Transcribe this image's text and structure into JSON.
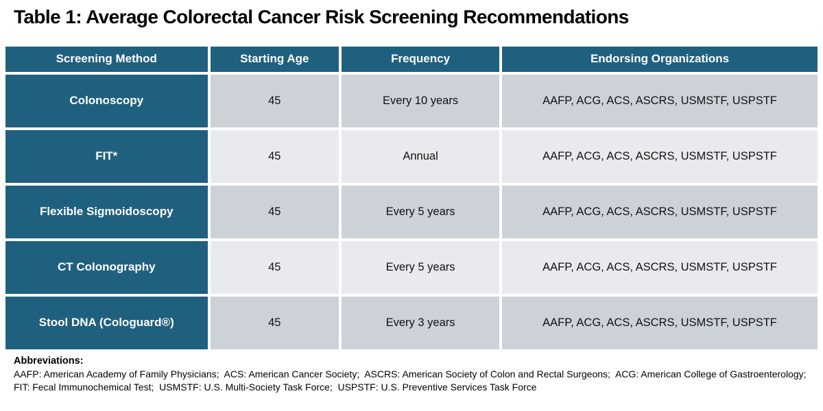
{
  "title": "Table 1: Average Colorectal Cancer Risk Screening Recommendations",
  "table": {
    "headers": [
      "Screening Method",
      "Starting Age",
      "Frequency",
      "Endorsing Organizations"
    ],
    "rows": [
      {
        "method": "Colonoscopy",
        "starting_age": "45",
        "frequency": "Every 10 years",
        "organizations": "AAFP, ACG, ACS, ASCRS, USMSTF, USPSTF"
      },
      {
        "method": "FIT*",
        "starting_age": "45",
        "frequency": "Annual",
        "organizations": "AAFP, ACG, ACS, ASCRS, USMSTF, USPSTF"
      },
      {
        "method": "Flexible Sigmoidoscopy",
        "starting_age": "45",
        "frequency": "Every 5 years",
        "organizations": "AAFP, ACG, ACS, ASCRS, USMSTF, USPSTF"
      },
      {
        "method": "CT Colonography",
        "starting_age": "45",
        "frequency": "Every 5 years",
        "organizations": "AAFP, ACG, ACS, ASCRS, USMSTF, USPSTF"
      },
      {
        "method": "Stool DNA (Cologuard®)",
        "starting_age": "45",
        "frequency": "Every 3 years",
        "organizations": "AAFP, ACG, ACS, ASCRS, USMSTF, USPSTF"
      }
    ]
  },
  "footnotes": {
    "label": "Abbreviations:",
    "line1": "AAFP: American Academy of Family Physicians;  ACS: American Cancer Society;  ASCRS: American Society of Colon and Rectal Surgeons;  ACG: American College of Gastroenterology;",
    "line2": "FIT: Fecal Immunochemical Test;  USMSTF: U.S. Multi-Society Task Force;  USPSTF: U.S. Preventive Services Task Force"
  },
  "colors": {
    "header_bg": "#20607F",
    "row_odd_bg": "#CDD1D8",
    "row_even_bg": "#E9EAED",
    "header_text": "#FFFFFF",
    "body_text": "#111111"
  }
}
